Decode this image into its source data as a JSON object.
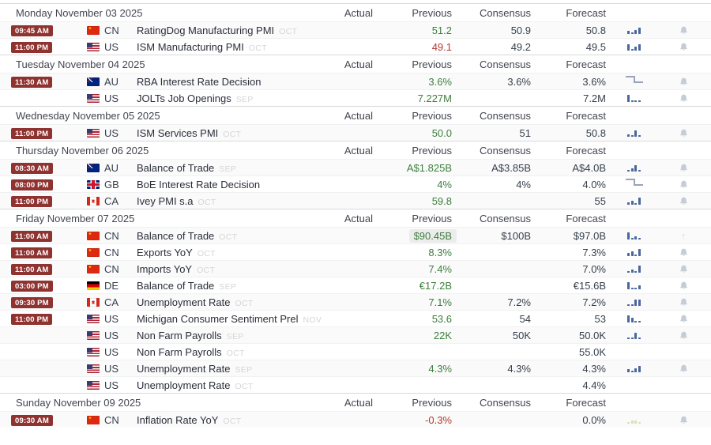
{
  "columns": {
    "actual": "Actual",
    "previous": "Previous",
    "consensus": "Consensus",
    "forecast": "Forecast"
  },
  "colors": {
    "time_badge": "#8f3331",
    "chart_icon_blue": "#49679d",
    "chart_icon_faded": "#b9c069",
    "value_green": "#3e7e3e",
    "value_red": "#b23b32",
    "bell_gray": "#c6ccd4"
  },
  "sections": [
    {
      "date": "Monday November 03 2025",
      "rows": [
        {
          "time": "09:45 AM",
          "country": "CN",
          "event": "RatingDog Manufacturing PMI",
          "period": "OCT",
          "actual": "",
          "previous": "51.2",
          "previous_color": "green",
          "consensus": "50.9",
          "forecast": "50.8",
          "icon": "bars",
          "bars": [
            4,
            2,
            5,
            8
          ],
          "alert": "bell"
        },
        {
          "time": "11:00 PM",
          "country": "US",
          "event": "ISM Manufacturing PMI",
          "period": "OCT",
          "actual": "",
          "previous": "49.1",
          "previous_color": "red",
          "consensus": "49.2",
          "forecast": "49.5",
          "icon": "bars",
          "bars": [
            8,
            2,
            5,
            8
          ],
          "alert": "bell"
        }
      ]
    },
    {
      "date": "Tuesday November 04 2025",
      "rows": [
        {
          "time": "11:30 AM",
          "country": "AU",
          "event": "RBA Interest Rate Decision",
          "period": "",
          "actual": "",
          "previous": "3.6%",
          "previous_color": "green",
          "consensus": "3.6%",
          "forecast": "3.6%",
          "icon": "step",
          "bars": [],
          "alert": "bell"
        },
        {
          "time": "",
          "country": "US",
          "event": "JOLTs Job Openings",
          "period": "SEP",
          "actual": "",
          "previous": "7.227M",
          "previous_color": "green",
          "consensus": "",
          "forecast": "7.2M",
          "icon": "bars",
          "bars": [
            9,
            2,
            2,
            2
          ],
          "alert": "bell"
        }
      ]
    },
    {
      "date": "Wednesday November 05 2025",
      "rows": [
        {
          "time": "11:00 PM",
          "country": "US",
          "event": "ISM Services PMI",
          "period": "OCT",
          "actual": "",
          "previous": "50.0",
          "previous_color": "green",
          "consensus": "51",
          "forecast": "50.8",
          "icon": "bars",
          "bars": [
            3,
            2,
            8,
            2
          ],
          "alert": "bell"
        }
      ]
    },
    {
      "date": "Thursday November 06 2025",
      "rows": [
        {
          "time": "08:30 AM",
          "country": "AU",
          "event": "Balance of Trade",
          "period": "SEP",
          "actual": "",
          "previous": "A$1.825B",
          "previous_color": "green",
          "consensus": "A$3.85B",
          "forecast": "A$4.0B",
          "icon": "bars",
          "bars": [
            2,
            4,
            8,
            2
          ],
          "alert": "bell"
        },
        {
          "time": "08:00 PM",
          "country": "GB",
          "event": "BoE Interest Rate Decision",
          "period": "",
          "actual": "",
          "previous": "4%",
          "previous_color": "green",
          "consensus": "4%",
          "forecast": "4.0%",
          "icon": "step",
          "bars": [],
          "alert": "bell"
        },
        {
          "time": "11:00 PM",
          "country": "CA",
          "event": "Ivey PMI s.a",
          "period": "OCT",
          "actual": "",
          "previous": "59.8",
          "previous_color": "green",
          "consensus": "",
          "forecast": "55",
          "icon": "bars",
          "bars": [
            3,
            5,
            2,
            9
          ],
          "alert": "bell"
        }
      ]
    },
    {
      "date": "Friday November 07 2025",
      "rows": [
        {
          "time": "11:00 AM",
          "country": "CN",
          "event": "Balance of Trade",
          "period": "OCT",
          "actual": "",
          "previous": "$90.45B",
          "previous_color": "green",
          "previous_highlight": true,
          "consensus": "$100B",
          "forecast": "$97.0B",
          "icon": "bars",
          "bars": [
            9,
            2,
            4,
            2
          ],
          "alert": "arrow"
        },
        {
          "time": "11:00 AM",
          "country": "CN",
          "event": "Exports YoY",
          "period": "OCT",
          "actual": "",
          "previous": "8.3%",
          "previous_color": "green",
          "consensus": "",
          "forecast": "7.3%",
          "icon": "bars",
          "bars": [
            4,
            6,
            2,
            9
          ],
          "alert": "bell"
        },
        {
          "time": "11:00 AM",
          "country": "CN",
          "event": "Imports YoY",
          "period": "OCT",
          "actual": "",
          "previous": "7.4%",
          "previous_color": "green",
          "consensus": "",
          "forecast": "7.0%",
          "icon": "bars",
          "bars": [
            2,
            4,
            2,
            9
          ],
          "alert": "bell"
        },
        {
          "time": "03:00 PM",
          "country": "DE",
          "event": "Balance of Trade",
          "period": "SEP",
          "actual": "",
          "previous": "€17.2B",
          "previous_color": "green",
          "consensus": "",
          "forecast": "€15.6B",
          "icon": "bars",
          "bars": [
            9,
            2,
            2,
            5
          ],
          "alert": "bell"
        },
        {
          "time": "09:30 PM",
          "country": "CA",
          "event": "Unemployment Rate",
          "period": "OCT",
          "actual": "",
          "previous": "7.1%",
          "previous_color": "green",
          "consensus": "7.2%",
          "forecast": "7.2%",
          "icon": "bars",
          "bars": [
            2,
            2,
            8,
            8
          ],
          "alert": "bell"
        },
        {
          "time": "11:00 PM",
          "country": "US",
          "event": "Michigan Consumer Sentiment Prel",
          "period": "NOV",
          "actual": "",
          "previous": "53.6",
          "previous_color": "green",
          "consensus": "54",
          "forecast": "53",
          "icon": "bars",
          "bars": [
            9,
            6,
            2,
            2
          ],
          "alert": "bell"
        },
        {
          "time": "",
          "country": "US",
          "event": "Non Farm Payrolls",
          "period": "SEP",
          "actual": "",
          "previous": "22K",
          "previous_color": "green",
          "consensus": "50K",
          "forecast": "50.0K",
          "icon": "bars",
          "bars": [
            2,
            2,
            8,
            2
          ],
          "alert": "bell"
        },
        {
          "time": "",
          "country": "US",
          "event": "Non Farm Payrolls",
          "period": "OCT",
          "actual": "",
          "previous": "",
          "previous_color": "default",
          "consensus": "",
          "forecast": "55.0K",
          "icon": "none",
          "bars": [],
          "alert": "none"
        },
        {
          "time": "",
          "country": "US",
          "event": "Unemployment Rate",
          "period": "SEP",
          "actual": "",
          "previous": "4.3%",
          "previous_color": "green",
          "consensus": "4.3%",
          "forecast": "4.3%",
          "icon": "bars",
          "bars": [
            4,
            2,
            5,
            8
          ],
          "alert": "bell"
        },
        {
          "time": "",
          "country": "US",
          "event": "Unemployment Rate",
          "period": "OCT",
          "actual": "",
          "previous": "",
          "previous_color": "default",
          "consensus": "",
          "forecast": "4.4%",
          "icon": "none",
          "bars": [],
          "alert": "none"
        }
      ]
    },
    {
      "date": "Sunday November 09 2025",
      "rows": [
        {
          "time": "09:30 AM",
          "country": "CN",
          "event": "Inflation Rate YoY",
          "period": "OCT",
          "actual": "",
          "previous": "-0.3%",
          "previous_color": "red",
          "consensus": "",
          "forecast": "0.0%",
          "icon": "bars-faded",
          "bars": [
            2,
            4,
            4,
            2
          ],
          "alert": "bell"
        }
      ]
    }
  ]
}
